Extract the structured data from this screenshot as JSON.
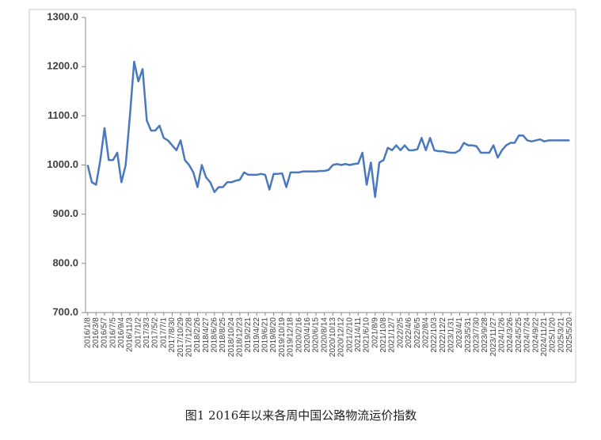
{
  "chart_data": {
    "type": "line",
    "caption": "图1 2016年以来各周中国公路物流运价指数",
    "categories": [
      "2016/1/8",
      null,
      "2016/3/8",
      null,
      "2016/5/7",
      null,
      "2016/7/5",
      null,
      "2016/9/4",
      null,
      "2016/11/3",
      null,
      "2017/1/2",
      null,
      "2017/3/3",
      null,
      "2017/5/2",
      null,
      "2017/7/1",
      null,
      "2017/8/30",
      null,
      "2017/10/29",
      null,
      "2017/12/28",
      null,
      "2018/2/26",
      null,
      "2018/4/27",
      null,
      "2018/6/26",
      null,
      "2018/8/25",
      null,
      "2018/10/24",
      null,
      "2018/12/23",
      null,
      "2019/2/21",
      null,
      "2019/4/22",
      null,
      "2019/6/21",
      null,
      "2019/8/20",
      null,
      "2019/10/19",
      null,
      "2019/12/18",
      null,
      "2020/2/16",
      null,
      "2020/4/16",
      null,
      "2020/6/15",
      null,
      "2020/8/14",
      null,
      "2020/10/13",
      null,
      "2020/12/12",
      null,
      "2021/2/10",
      null,
      "2021/4/11",
      null,
      "2021/6/10",
      null,
      "2021/8/9",
      null,
      "2021/10/8",
      null,
      "2021/12/7",
      null,
      "2022/2/5",
      null,
      "2022/4/6",
      null,
      "2022/6/5",
      null,
      "2022/8/4",
      null,
      "2022/10/3",
      null,
      "2022/12/2",
      null,
      "2023/1/31",
      null,
      "2023/4/1",
      null,
      "2023/5/31",
      null,
      "2023/7/30",
      null,
      "2023/9/28",
      null,
      "2023/11/27",
      null,
      "2024/1/26",
      null,
      "2024/3/26",
      null,
      "2024/5/25",
      null,
      "2024/7/24",
      null,
      "2024/9/22",
      null,
      "2024/11/21",
      null,
      "2025/1/20",
      null,
      "2025/3/21",
      null,
      "2025/5/20"
    ],
    "values": [
      1000,
      965,
      960,
      1010,
      1075,
      1010,
      1010,
      1025,
      965,
      1000,
      1100,
      1210,
      1170,
      1195,
      1090,
      1070,
      1070,
      1080,
      1055,
      1050,
      1040,
      1030,
      1050,
      1010,
      1000,
      985,
      955,
      1000,
      975,
      965,
      945,
      955,
      955,
      965,
      965,
      968,
      970,
      985,
      980,
      980,
      980,
      982,
      980,
      950,
      982,
      982,
      983,
      955,
      985,
      985,
      985,
      987,
      987,
      987,
      987,
      988,
      988,
      990,
      1000,
      1002,
      1000,
      1002,
      1000,
      1002,
      1003,
      1025,
      960,
      1005,
      935,
      1005,
      1010,
      1035,
      1030,
      1040,
      1030,
      1040,
      1030,
      1030,
      1032,
      1055,
      1030,
      1055,
      1030,
      1028,
      1028,
      1026,
      1025,
      1025,
      1030,
      1045,
      1040,
      1040,
      1038,
      1025,
      1025,
      1025,
      1040,
      1015,
      1030,
      1040,
      1045,
      1045,
      1060,
      1060,
      1050,
      1048,
      1050,
      1052,
      1048,
      1050,
      1050,
      1050,
      1050,
      1050,
      1050
    ],
    "color": "#4a78bf",
    "ylim": [
      700,
      1300
    ],
    "yticks": [
      {
        "value": 700,
        "label": "700.0"
      },
      {
        "value": 800,
        "label": "800.0"
      },
      {
        "value": 900,
        "label": "900.0"
      },
      {
        "value": 1000,
        "label": "1000.0"
      },
      {
        "value": 1100,
        "label": "1100.0"
      },
      {
        "value": 1200,
        "label": "1200.0"
      },
      {
        "value": 1300,
        "label": "1300.0"
      }
    ],
    "grid": false
  }
}
